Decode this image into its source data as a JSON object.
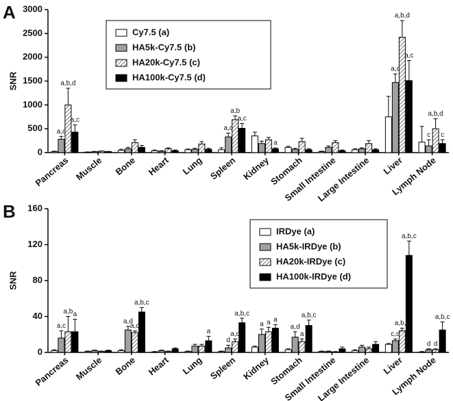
{
  "chart_data": [
    {
      "type": "bar",
      "panel_label": "A",
      "y_label": "SNR",
      "legend": "upper left",
      "categories": [
        "Pancreas",
        "Muscle",
        "Bone",
        "Heart",
        "Lung",
        "Spleen",
        "Kidney",
        "Stomach",
        "Small Intestine",
        "Large Intestine",
        "Liver",
        "Lymph Node"
      ],
      "ylim": [
        0,
        3000
      ],
      "yticks": [
        0,
        500,
        1000,
        1500,
        2000,
        2500,
        3000
      ],
      "series": [
        {
          "name": "Cy7.5 (a)",
          "color": "#ffffff",
          "values": [
            20,
            10,
            50,
            40,
            60,
            60,
            350,
            110,
            20,
            60,
            750,
            220
          ],
          "errors": [
            10,
            5,
            20,
            15,
            15,
            40,
            80,
            20,
            10,
            20,
            430,
            330
          ],
          "significance": [
            null,
            null,
            null,
            null,
            null,
            null,
            null,
            null,
            null,
            null,
            null,
            null
          ]
        },
        {
          "name": "HA5k-Cy7.5 (b)",
          "color": "#a0a0a0",
          "values": [
            280,
            20,
            80,
            30,
            70,
            330,
            190,
            70,
            110,
            80,
            1470,
            140
          ],
          "errors": [
            60,
            5,
            30,
            10,
            20,
            80,
            50,
            20,
            30,
            20,
            180,
            130
          ],
          "significance": [
            "a,c",
            null,
            null,
            null,
            null,
            "a,c",
            null,
            null,
            null,
            null,
            "a,c",
            "c"
          ]
        },
        {
          "name": "HA20k-Cy7.5 (c)",
          "color": "#ffffff",
          "pattern": "hatch",
          "values": [
            1000,
            30,
            210,
            80,
            180,
            690,
            270,
            230,
            210,
            190,
            2420,
            500
          ],
          "errors": [
            350,
            5,
            60,
            20,
            50,
            80,
            50,
            70,
            40,
            60,
            350,
            210
          ],
          "significance": [
            "a,b,d",
            null,
            null,
            null,
            null,
            "a,b",
            null,
            null,
            null,
            null,
            "a,b,d",
            "a,b,d"
          ]
        },
        {
          "name": "HA100k-Cy7.5 (d)",
          "color": "#000000",
          "values": [
            430,
            20,
            110,
            40,
            70,
            510,
            80,
            60,
            40,
            60,
            1510,
            190
          ],
          "errors": [
            150,
            5,
            40,
            15,
            20,
            100,
            20,
            20,
            15,
            20,
            420,
            80
          ],
          "significance": [
            "a,c",
            null,
            null,
            null,
            null,
            "a,c",
            "a",
            null,
            null,
            null,
            "a,c",
            "c"
          ]
        }
      ]
    },
    {
      "type": "bar",
      "panel_label": "B",
      "y_label": "SNR",
      "legend": "upper right",
      "categories": [
        "Pancreas",
        "Muscle",
        "Bone",
        "Heart",
        "Lung",
        "Spleen",
        "Kidney",
        "Stomach",
        "Small Intestine",
        "Large Intestine",
        "Liver",
        "Lymph Node"
      ],
      "ylim": [
        0,
        160
      ],
      "yticks": [
        0,
        40,
        80,
        120,
        160
      ],
      "series": [
        {
          "name": "IRDye (a)",
          "color": "#ffffff",
          "values": [
            2,
            1,
            2,
            0.5,
            1,
            1,
            6,
            3,
            1,
            2,
            9,
            0.5
          ],
          "errors": [
            1,
            0.5,
            1,
            0.5,
            0.5,
            0.5,
            1,
            1,
            0.5,
            1,
            1,
            0.5
          ],
          "significance": [
            null,
            null,
            null,
            null,
            null,
            null,
            null,
            null,
            null,
            null,
            null,
            null
          ]
        },
        {
          "name": "HA5k-IRDye (b)",
          "color": "#a0a0a0",
          "values": [
            16,
            2,
            25,
            2,
            7,
            5,
            20,
            17,
            1,
            6,
            13,
            3
          ],
          "errors": [
            8,
            0.5,
            4,
            0.5,
            2,
            3,
            6,
            6,
            0.5,
            2,
            2,
            1
          ],
          "significance": [
            "a,c",
            null,
            "a,d",
            null,
            null,
            "d",
            "a",
            "a,d",
            null,
            null,
            "c,d",
            "d"
          ]
        },
        {
          "name": "HA20k-IRDye (c)",
          "color": "#ffffff",
          "pattern": "hatch",
          "values": [
            23,
            1,
            22,
            1,
            7,
            12,
            23,
            12,
            0.5,
            4,
            24,
            3
          ],
          "errors": [
            17,
            0.5,
            2,
            0.5,
            2,
            3,
            5,
            3,
            0.5,
            2,
            3,
            1
          ],
          "significance": [
            "a,b",
            null,
            "a,d",
            null,
            null,
            "a,d",
            "a",
            "a",
            null,
            null,
            "a,b,d",
            "d"
          ]
        },
        {
          "name": "HA100k-IRDye (d)",
          "color": "#000000",
          "values": [
            23,
            2,
            45,
            4,
            13,
            33,
            27,
            30,
            4,
            9,
            108,
            25
          ],
          "errors": [
            14,
            0.5,
            5,
            1,
            5,
            5,
            4,
            6,
            2,
            3,
            16,
            9
          ],
          "significance": [
            "a",
            null,
            "a,b,c",
            null,
            "a",
            "a,b,c",
            "a",
            "a,b,c",
            null,
            null,
            "a,b,c",
            "a,b,c"
          ]
        }
      ]
    }
  ]
}
